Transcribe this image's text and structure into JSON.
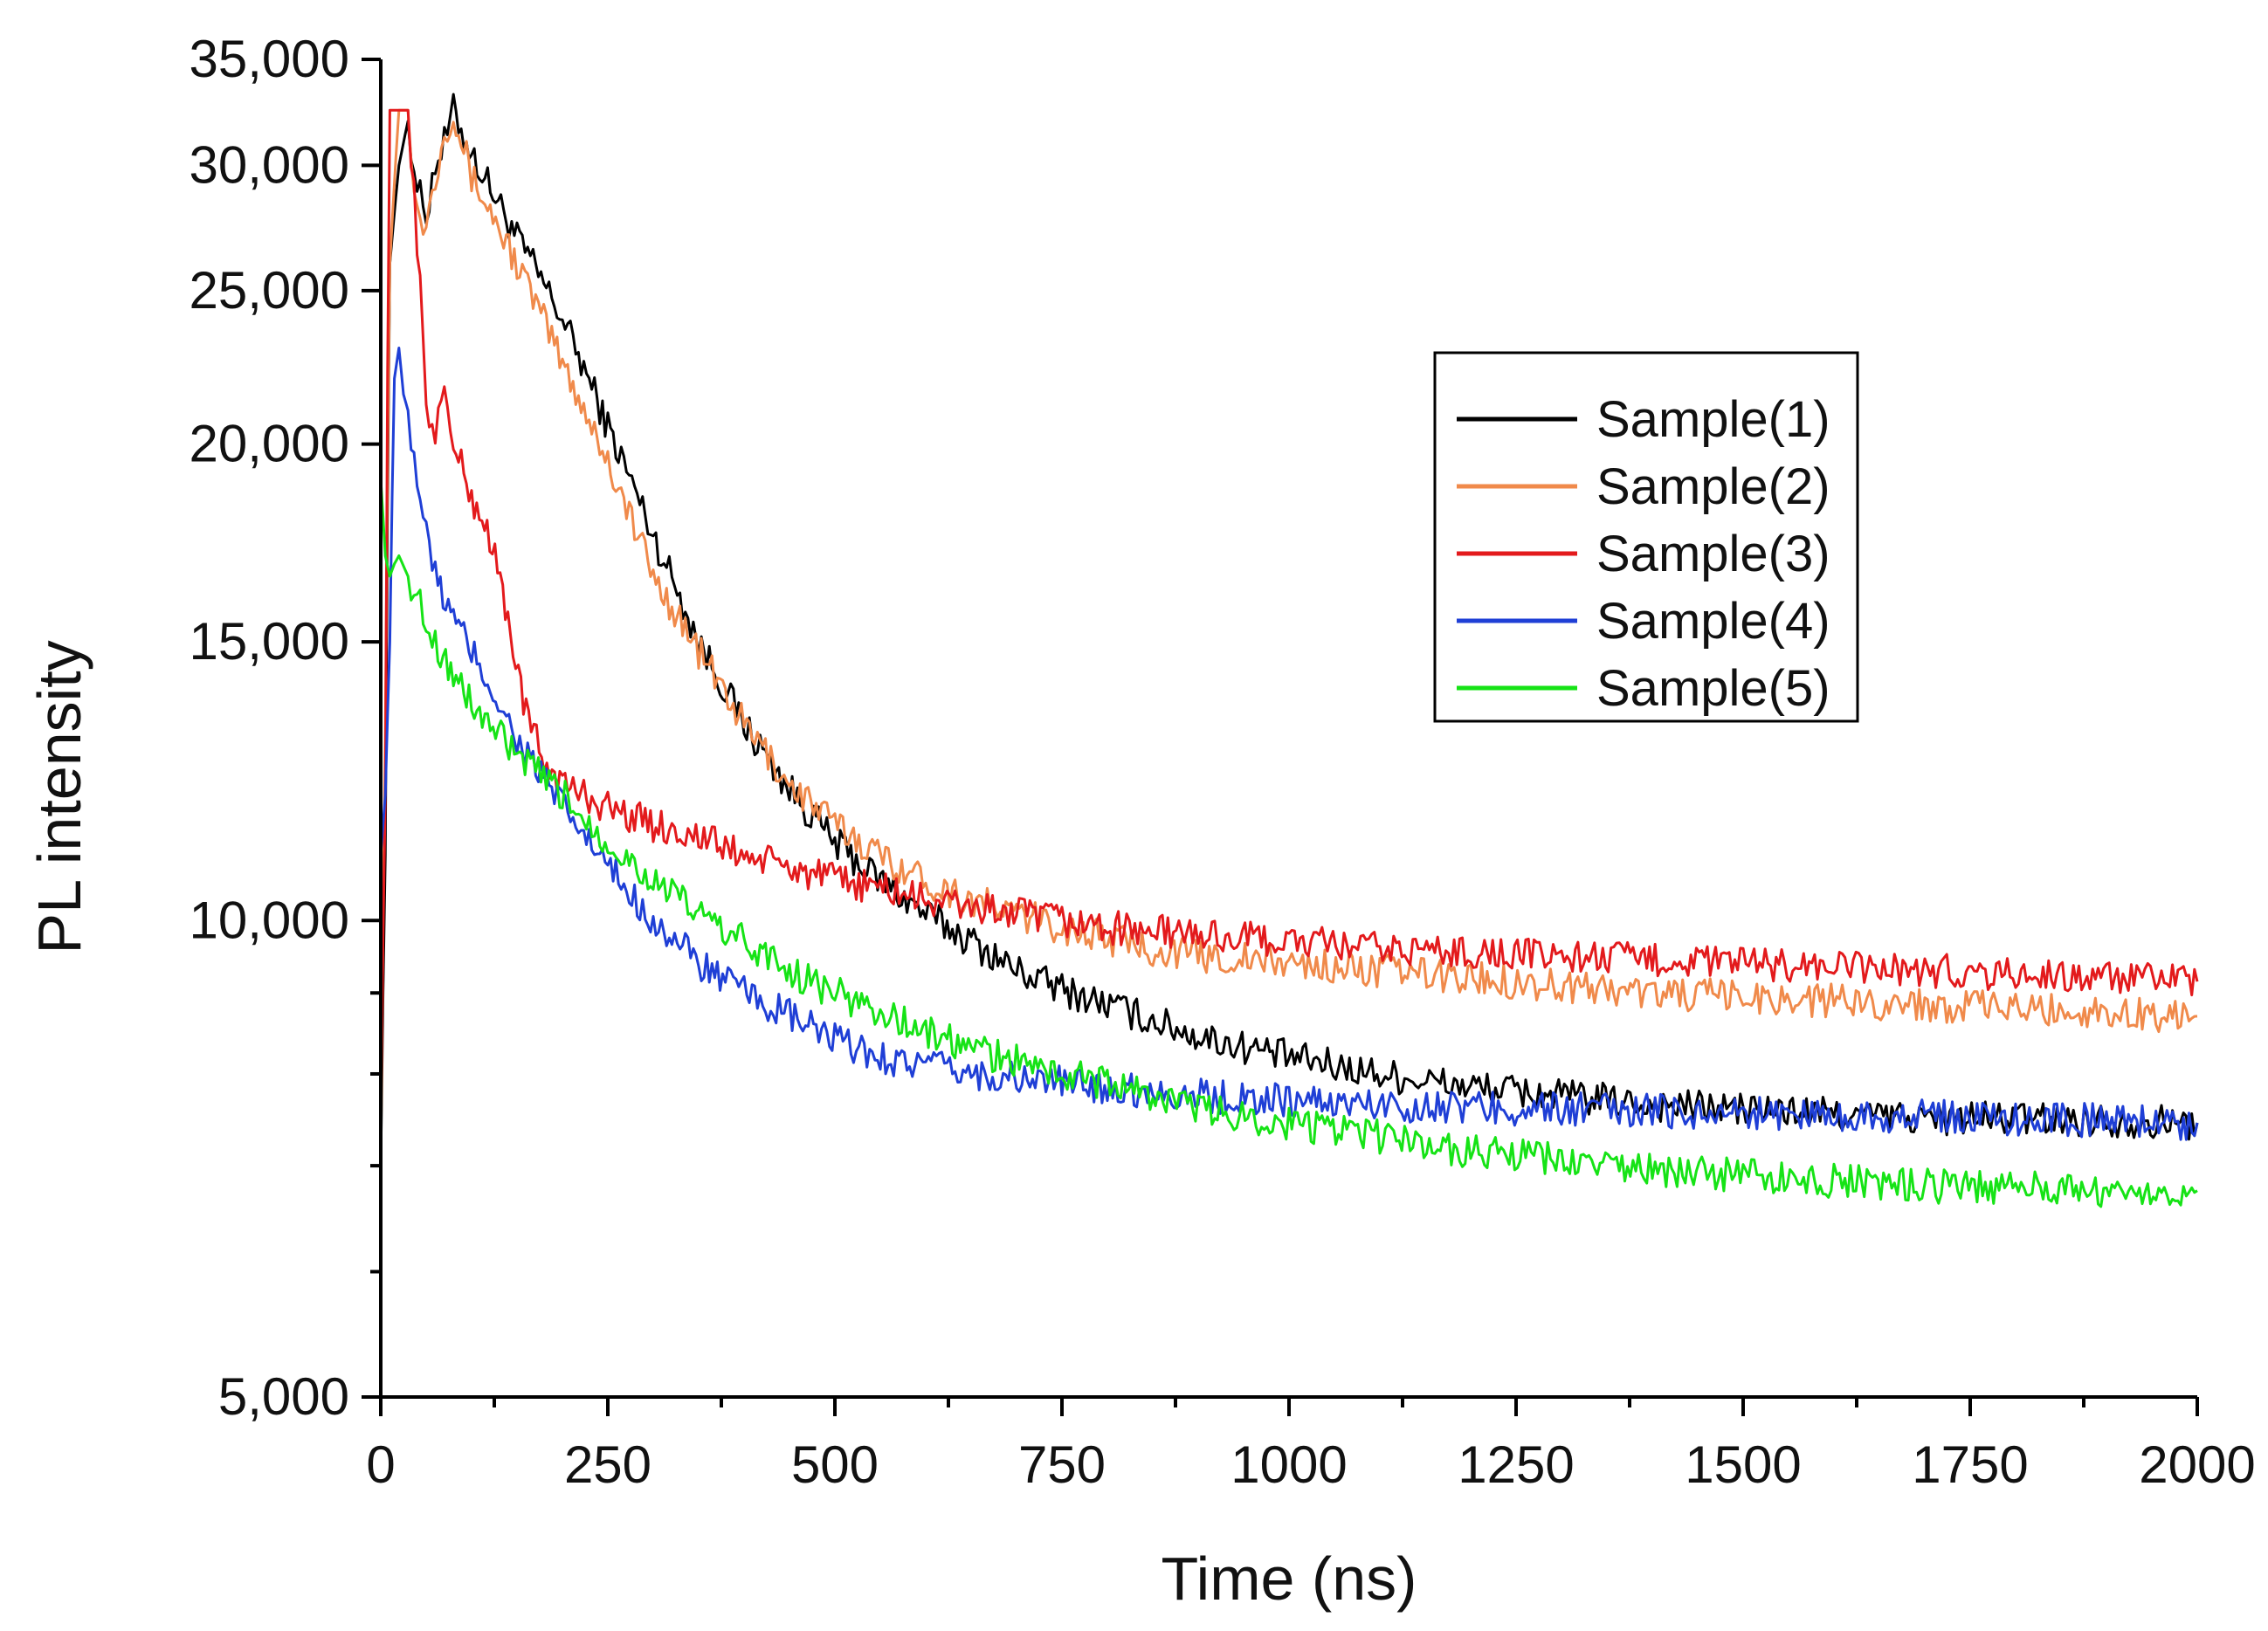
{
  "chart_data": {
    "type": "line",
    "title": "",
    "xlabel": "Time (ns)",
    "ylabel": "PL intensity",
    "xlim": [
      0,
      2000
    ],
    "ylim": [
      5000,
      35000
    ],
    "yscale": "log",
    "grid": false,
    "legend_position": "top-right",
    "x_ticks": [
      0,
      250,
      500,
      750,
      1000,
      1250,
      1500,
      1750,
      2000
    ],
    "x_tick_labels": [
      "0",
      "250",
      "500",
      "750",
      "1000",
      "1250",
      "1500",
      "1750",
      "2000"
    ],
    "y_ticks": [
      5000,
      10000,
      15000,
      20000,
      25000,
      30000,
      35000
    ],
    "y_tick_labels": [
      "5,000",
      "10,000",
      "15,000",
      "20,000",
      "25,000",
      "30,000",
      "35,000"
    ],
    "series": [
      {
        "name": "Sample(1)",
        "color": "#000000",
        "x": [
          0,
          5,
          10,
          20,
          30,
          40,
          50,
          60,
          70,
          80,
          100,
          150,
          200,
          250,
          300,
          350,
          400,
          450,
          500,
          550,
          600,
          650,
          700,
          750,
          800,
          850,
          900,
          1000,
          1100,
          1200,
          1300,
          1400,
          1500,
          1600,
          1700,
          1800,
          1900,
          2000
        ],
        "y": [
          7000,
          11000,
          26000,
          30000,
          32000,
          29000,
          28000,
          30000,
          31000,
          32500,
          30500,
          27000,
          24000,
          20500,
          17500,
          15000,
          13300,
          12100,
          11200,
          10600,
          10100,
          9700,
          9300,
          9050,
          8850,
          8650,
          8450,
          8200,
          8000,
          7850,
          7750,
          7650,
          7600,
          7550,
          7500,
          7500,
          7480,
          7450
        ]
      },
      {
        "name": "Sample(2)",
        "color": "#f08a4b",
        "x": [
          0,
          5,
          10,
          20,
          30,
          40,
          50,
          60,
          70,
          80,
          100,
          150,
          200,
          250,
          300,
          350,
          400,
          450,
          500,
          550,
          600,
          650,
          700,
          750,
          800,
          850,
          900,
          1000,
          1100,
          1200,
          1300,
          1400,
          1500,
          1600,
          1700,
          1800,
          1900,
          2000
        ],
        "y": [
          7000,
          13000,
          26000,
          32500,
          32500,
          28000,
          27500,
          29500,
          31500,
          32500,
          29500,
          26000,
          22500,
          19500,
          16500,
          14800,
          13300,
          12200,
          11500,
          11000,
          10600,
          10300,
          10100,
          9900,
          9750,
          9600,
          9500,
          9400,
          9300,
          9200,
          9100,
          9000,
          8950,
          8900,
          8850,
          8800,
          8750,
          8700
        ]
      },
      {
        "name": "Sample(3)",
        "color": "#e31a1c",
        "x": [
          0,
          5,
          10,
          15,
          20,
          30,
          40,
          50,
          60,
          70,
          80,
          100,
          120,
          140,
          160,
          180,
          200,
          250,
          300,
          350,
          400,
          450,
          500,
          550,
          600,
          650,
          700,
          750,
          800,
          900,
          1000,
          1100,
          1200,
          1300,
          1400,
          1500,
          1600,
          1700,
          1800,
          1900,
          2000
        ],
        "y": [
          7500,
          12000,
          32500,
          32500,
          32500,
          32500,
          27000,
          21000,
          20500,
          21500,
          20000,
          18500,
          17500,
          15500,
          13500,
          12600,
          12200,
          11800,
          11500,
          11300,
          11000,
          10800,
          10600,
          10500,
          10300,
          10200,
          10100,
          10000,
          9900,
          9800,
          9700,
          9600,
          9550,
          9500,
          9450,
          9400,
          9350,
          9300,
          9250,
          9200,
          9150
        ]
      },
      {
        "name": "Sample(4)",
        "color": "#1f3fd6",
        "x": [
          0,
          5,
          10,
          15,
          20,
          25,
          30,
          40,
          50,
          60,
          80,
          100,
          150,
          200,
          250,
          300,
          350,
          400,
          450,
          500,
          550,
          600,
          650,
          700,
          750,
          800,
          850,
          900,
          1000,
          1100,
          1200,
          1300,
          1400,
          1500,
          1600,
          1700,
          1800,
          1900,
          2000
        ],
        "y": [
          11000,
          12000,
          15000,
          22000,
          23000,
          21500,
          21000,
          19000,
          17500,
          16500,
          15500,
          14800,
          13000,
          11800,
          10800,
          10000,
          9400,
          9000,
          8700,
          8400,
          8200,
          8100,
          8000,
          7950,
          7900,
          7850,
          7800,
          7750,
          7700,
          7650,
          7620,
          7600,
          7580,
          7560,
          7540,
          7520,
          7500,
          7480,
          7450
        ]
      },
      {
        "name": "Sample(5)",
        "color": "#16e316",
        "x": [
          0,
          5,
          10,
          15,
          20,
          30,
          40,
          50,
          60,
          80,
          100,
          150,
          200,
          250,
          300,
          350,
          400,
          450,
          500,
          550,
          600,
          650,
          700,
          750,
          800,
          850,
          900,
          1000,
          1100,
          1200,
          1300,
          1400,
          1500,
          1600,
          1700,
          1800,
          1900,
          2000
        ],
        "y": [
          19000,
          17000,
          16500,
          16800,
          17000,
          16500,
          16000,
          15500,
          15000,
          14300,
          13700,
          12700,
          12000,
          11200,
          10600,
          10100,
          9700,
          9300,
          9000,
          8750,
          8500,
          8300,
          8150,
          8000,
          7900,
          7750,
          7600,
          7450,
          7300,
          7150,
          7050,
          6950,
          6900,
          6850,
          6800,
          6780,
          6760,
          6750
        ]
      }
    ]
  }
}
